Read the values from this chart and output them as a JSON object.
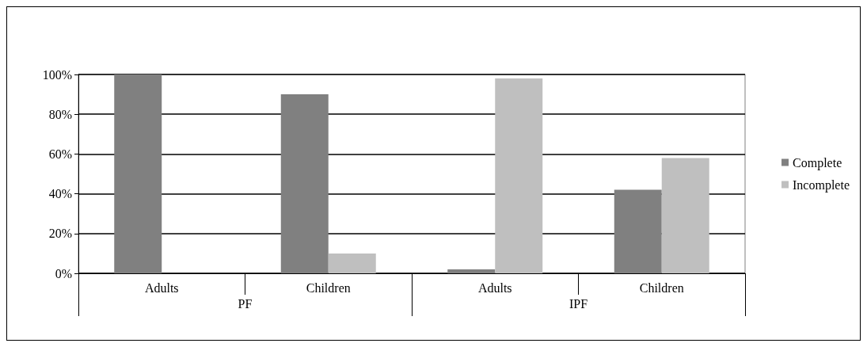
{
  "chart_data": {
    "type": "bar",
    "categories": [
      "Adults",
      "Children",
      "Adults",
      "Children"
    ],
    "series": [
      {
        "name": "Complete",
        "color": "#808080",
        "values": [
          100,
          90,
          2,
          42
        ]
      },
      {
        "name": "Incomplete",
        "color": "#bfbfbf",
        "values": [
          0,
          10,
          98,
          58
        ]
      }
    ],
    "annotations": [
      "PF",
      "IPF"
    ],
    "ylim": [
      0,
      100
    ],
    "yticks": [
      {
        "value": 0,
        "label": "0%"
      },
      {
        "value": 20,
        "label": "20%"
      },
      {
        "value": 40,
        "label": "40%"
      },
      {
        "value": 60,
        "label": "60%"
      },
      {
        "value": 80,
        "label": "80%"
      },
      {
        "value": 100,
        "label": "100%"
      }
    ],
    "grid": "y",
    "legend": "right"
  }
}
